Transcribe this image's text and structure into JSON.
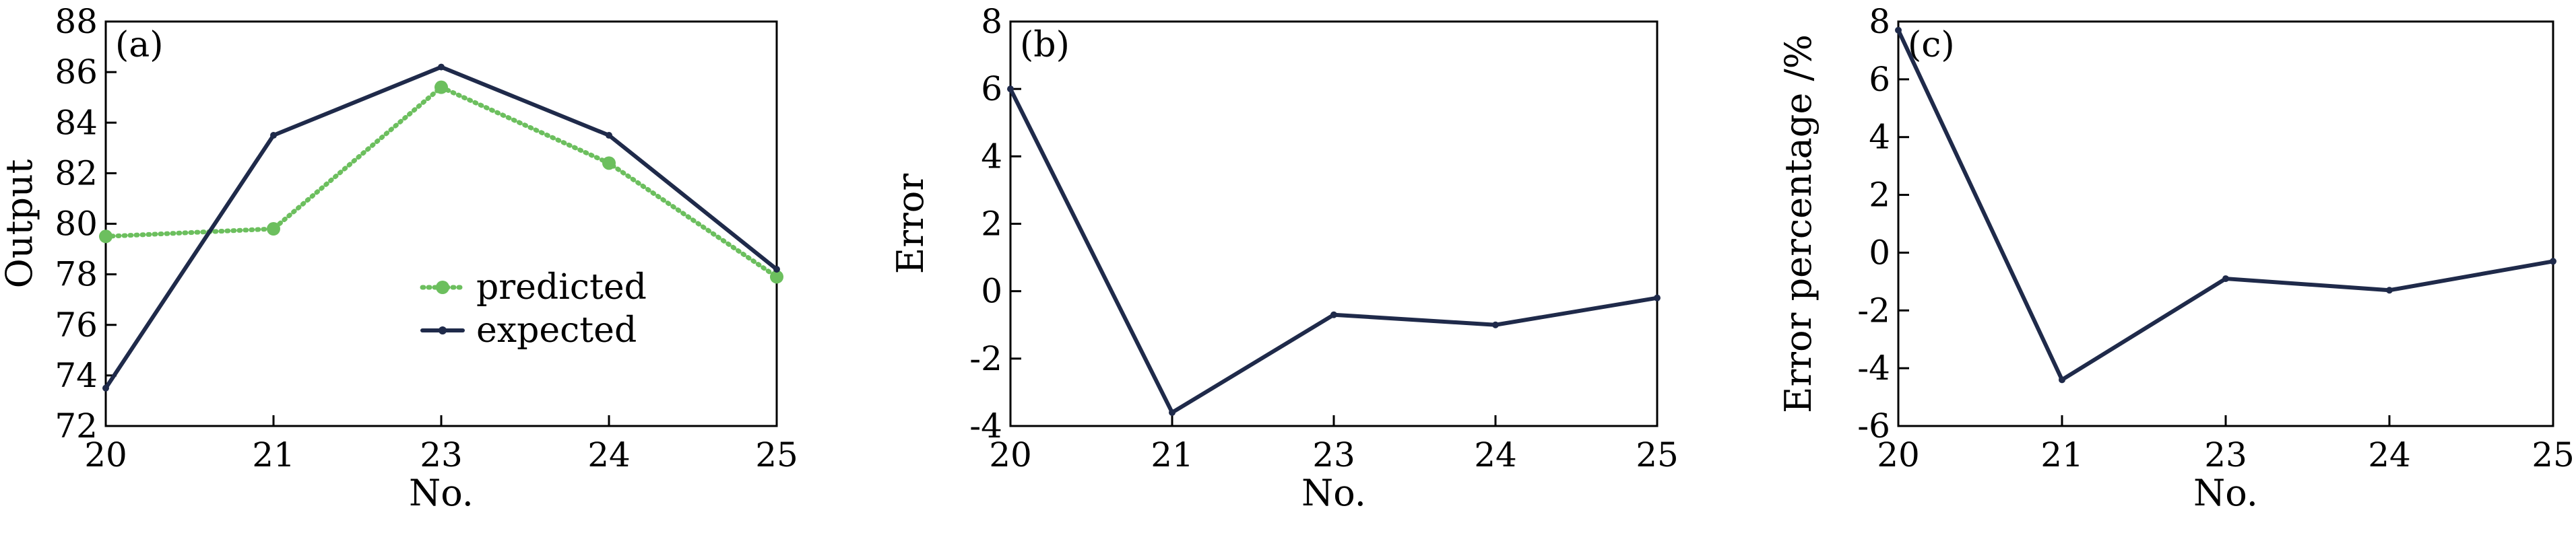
{
  "chart_data": [
    {
      "type": "line",
      "panel_label": "(a)",
      "x": [
        "20",
        "21",
        "23",
        "24",
        "25"
      ],
      "xlabel": "No.",
      "ylabel": "Output",
      "ylim": [
        72,
        88
      ],
      "yticks": [
        72,
        74,
        76,
        78,
        80,
        82,
        84,
        86,
        88
      ],
      "legend_position": "center-right",
      "series": [
        {
          "name": "predicted",
          "values": [
            79.5,
            79.8,
            85.4,
            82.4,
            77.9
          ],
          "color": "#6cbf5e",
          "style": "dotted",
          "marker": "circle"
        },
        {
          "name": "expected",
          "values": [
            73.5,
            83.5,
            86.2,
            83.5,
            78.2
          ],
          "color": "#1f2a4a",
          "style": "solid",
          "marker": "small-dot"
        }
      ]
    },
    {
      "type": "line",
      "panel_label": "(b)",
      "x": [
        "20",
        "21",
        "23",
        "24",
        "25"
      ],
      "xlabel": "No.",
      "ylabel": "Error",
      "ylim": [
        -4,
        8
      ],
      "yticks": [
        -4,
        -2,
        0,
        2,
        4,
        6,
        8
      ],
      "series": [
        {
          "values": [
            6.0,
            -3.6,
            -0.7,
            -1.0,
            -0.2
          ],
          "color": "#1f2a4a",
          "style": "solid",
          "marker": "small-dot"
        }
      ]
    },
    {
      "type": "line",
      "panel_label": "(c)",
      "x": [
        "20",
        "21",
        "23",
        "24",
        "25"
      ],
      "xlabel": "No.",
      "ylabel": "Error percentage /%",
      "ylim": [
        -6,
        8
      ],
      "yticks": [
        -6,
        -4,
        -2,
        0,
        2,
        4,
        6,
        8
      ],
      "series": [
        {
          "values": [
            7.7,
            -4.4,
            -0.9,
            -1.3,
            -0.3
          ],
          "color": "#1f2a4a",
          "style": "solid",
          "marker": "small-dot"
        }
      ]
    }
  ]
}
